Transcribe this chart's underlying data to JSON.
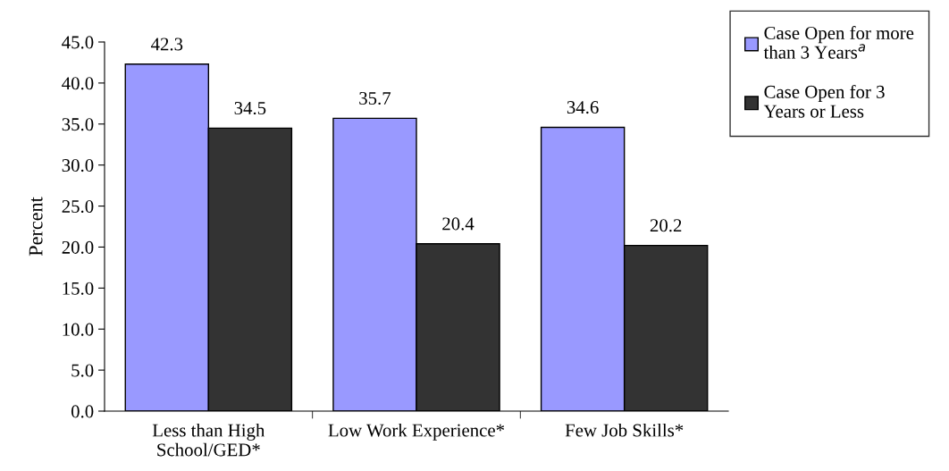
{
  "chart_data": {
    "type": "bar",
    "ylabel": "Percent",
    "categories": [
      "Less than High\nSchool/GED*",
      "Low Work Experience*",
      "Few Job Skills*"
    ],
    "series": [
      {
        "name": "Case Open for more\nthan 3 Years$^{a}$",
        "color": "#9999ff",
        "values": [
          42.3,
          35.7,
          34.6
        ]
      },
      {
        "name": "Case Open for 3\nYears or Less",
        "color": "#333333",
        "values": [
          34.5,
          20.4,
          20.2
        ]
      }
    ],
    "ylim": [
      0,
      45
    ],
    "yticks": [
      {
        "value": 0,
        "label": "0.0"
      },
      {
        "value": 5,
        "label": "5.0"
      },
      {
        "value": 10,
        "label": "10.0"
      },
      {
        "value": 15,
        "label": "15.0"
      },
      {
        "value": 20,
        "label": "20.0"
      },
      {
        "value": 25,
        "label": "25.0"
      },
      {
        "value": 30,
        "label": "30.0"
      },
      {
        "value": 35,
        "label": "35.0"
      },
      {
        "value": 40,
        "label": "40.0"
      },
      {
        "value": 45,
        "label": "45.0"
      }
    ],
    "data_labels": true,
    "legend": "top right",
    "grid": false
  }
}
